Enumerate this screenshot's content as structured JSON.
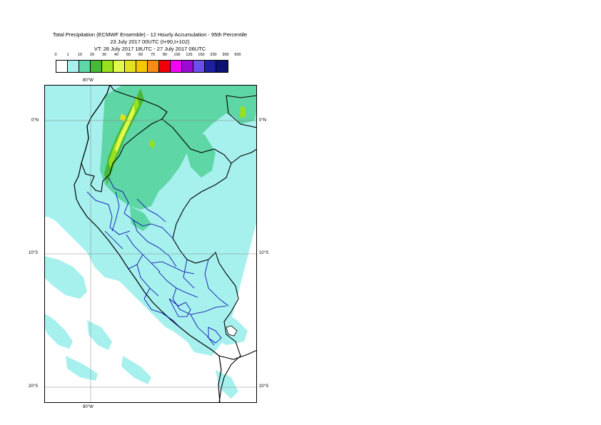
{
  "title": {
    "line1": "Total Precipitation (ECMWF Ensemble) - 12 Hourly Accumulation - 95th Percentile",
    "line2": "23 July 2017 00UTC (t+90,t+102)",
    "line3": "VT: 26 July 2017 18UTC - 27 July 2017 06UTC"
  },
  "legend": {
    "thresholds": [
      "0",
      "1",
      "10",
      "20",
      "30",
      "40",
      "50",
      "60",
      "70",
      "80",
      "100",
      "125",
      "150",
      "200",
      "300",
      "500"
    ],
    "colors": [
      "#ffffff",
      "#a6f0ee",
      "#5fd6a6",
      "#49b83a",
      "#98df1d",
      "#e0f94a",
      "#e3e21f",
      "#f5c800",
      "#f98a15",
      "#f2000a",
      "#f205f3",
      "#9c0bd4",
      "#6c4fe8",
      "#1d1fa3",
      "#0b1272"
    ]
  },
  "map": {
    "labels": {
      "lon_top": "80°W",
      "lon_bottom": "80°W",
      "lat_0_left": "0°N",
      "lat_0_right": "0°N",
      "lat_10_left": "10°S",
      "lat_10_right": "10°S",
      "lat_20_left": "20°S",
      "lat_20_right": "20°S"
    }
  }
}
